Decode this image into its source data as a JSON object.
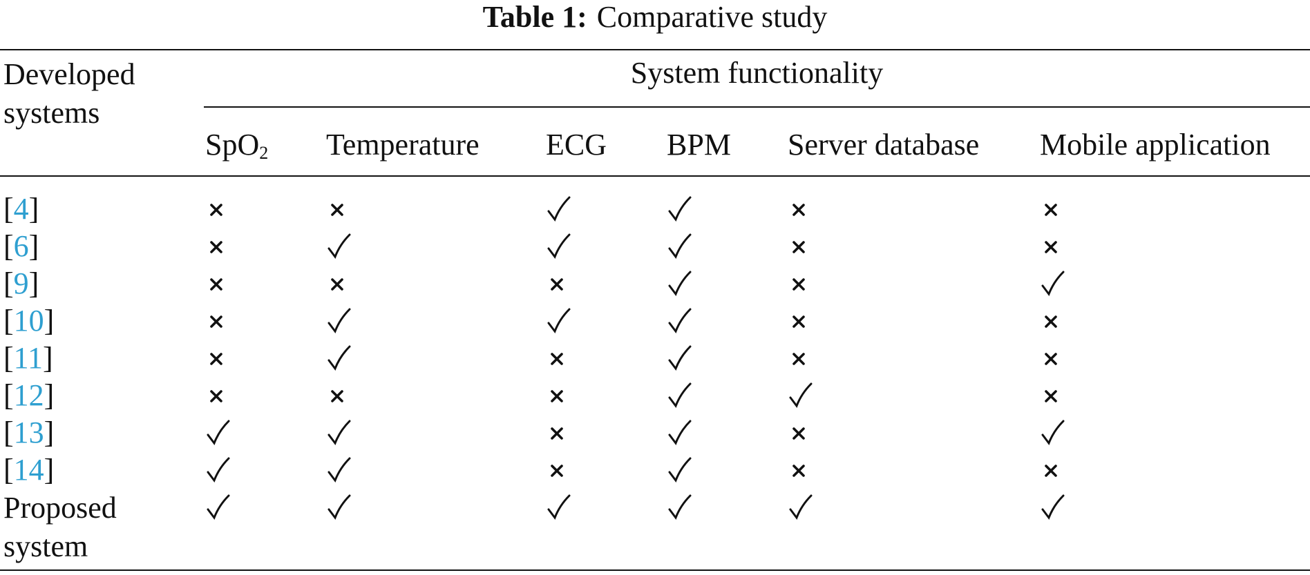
{
  "caption": {
    "label": "Table 1:",
    "title": "Comparative study"
  },
  "header": {
    "first_column": "Developed systems",
    "group": "System functionality",
    "columns": [
      {
        "text": "SpO",
        "sub": "2"
      },
      {
        "text": "Temperature"
      },
      {
        "text": "ECG"
      },
      {
        "text": "BPM"
      },
      {
        "text": "Server database"
      },
      {
        "text": "Mobile application"
      }
    ]
  },
  "rows": [
    {
      "ref": "4",
      "values": [
        false,
        false,
        true,
        true,
        false,
        false
      ]
    },
    {
      "ref": "6",
      "values": [
        false,
        true,
        true,
        true,
        false,
        false
      ]
    },
    {
      "ref": "9",
      "values": [
        false,
        false,
        false,
        true,
        false,
        true
      ]
    },
    {
      "ref": "10",
      "values": [
        false,
        true,
        true,
        true,
        false,
        false
      ]
    },
    {
      "ref": "11",
      "values": [
        false,
        true,
        false,
        true,
        false,
        false
      ]
    },
    {
      "ref": "12",
      "values": [
        false,
        false,
        false,
        true,
        true,
        false
      ]
    },
    {
      "ref": "13",
      "values": [
        true,
        true,
        false,
        true,
        false,
        true
      ]
    },
    {
      "ref": "14",
      "values": [
        true,
        true,
        false,
        true,
        false,
        false
      ]
    },
    {
      "label": "Proposed system",
      "values": [
        true,
        true,
        true,
        true,
        true,
        true
      ]
    }
  ],
  "icons": {
    "yes": "check-icon",
    "no": "cross-icon"
  },
  "colors": {
    "reference_link": "#2e9fd0",
    "text": "#111111"
  }
}
